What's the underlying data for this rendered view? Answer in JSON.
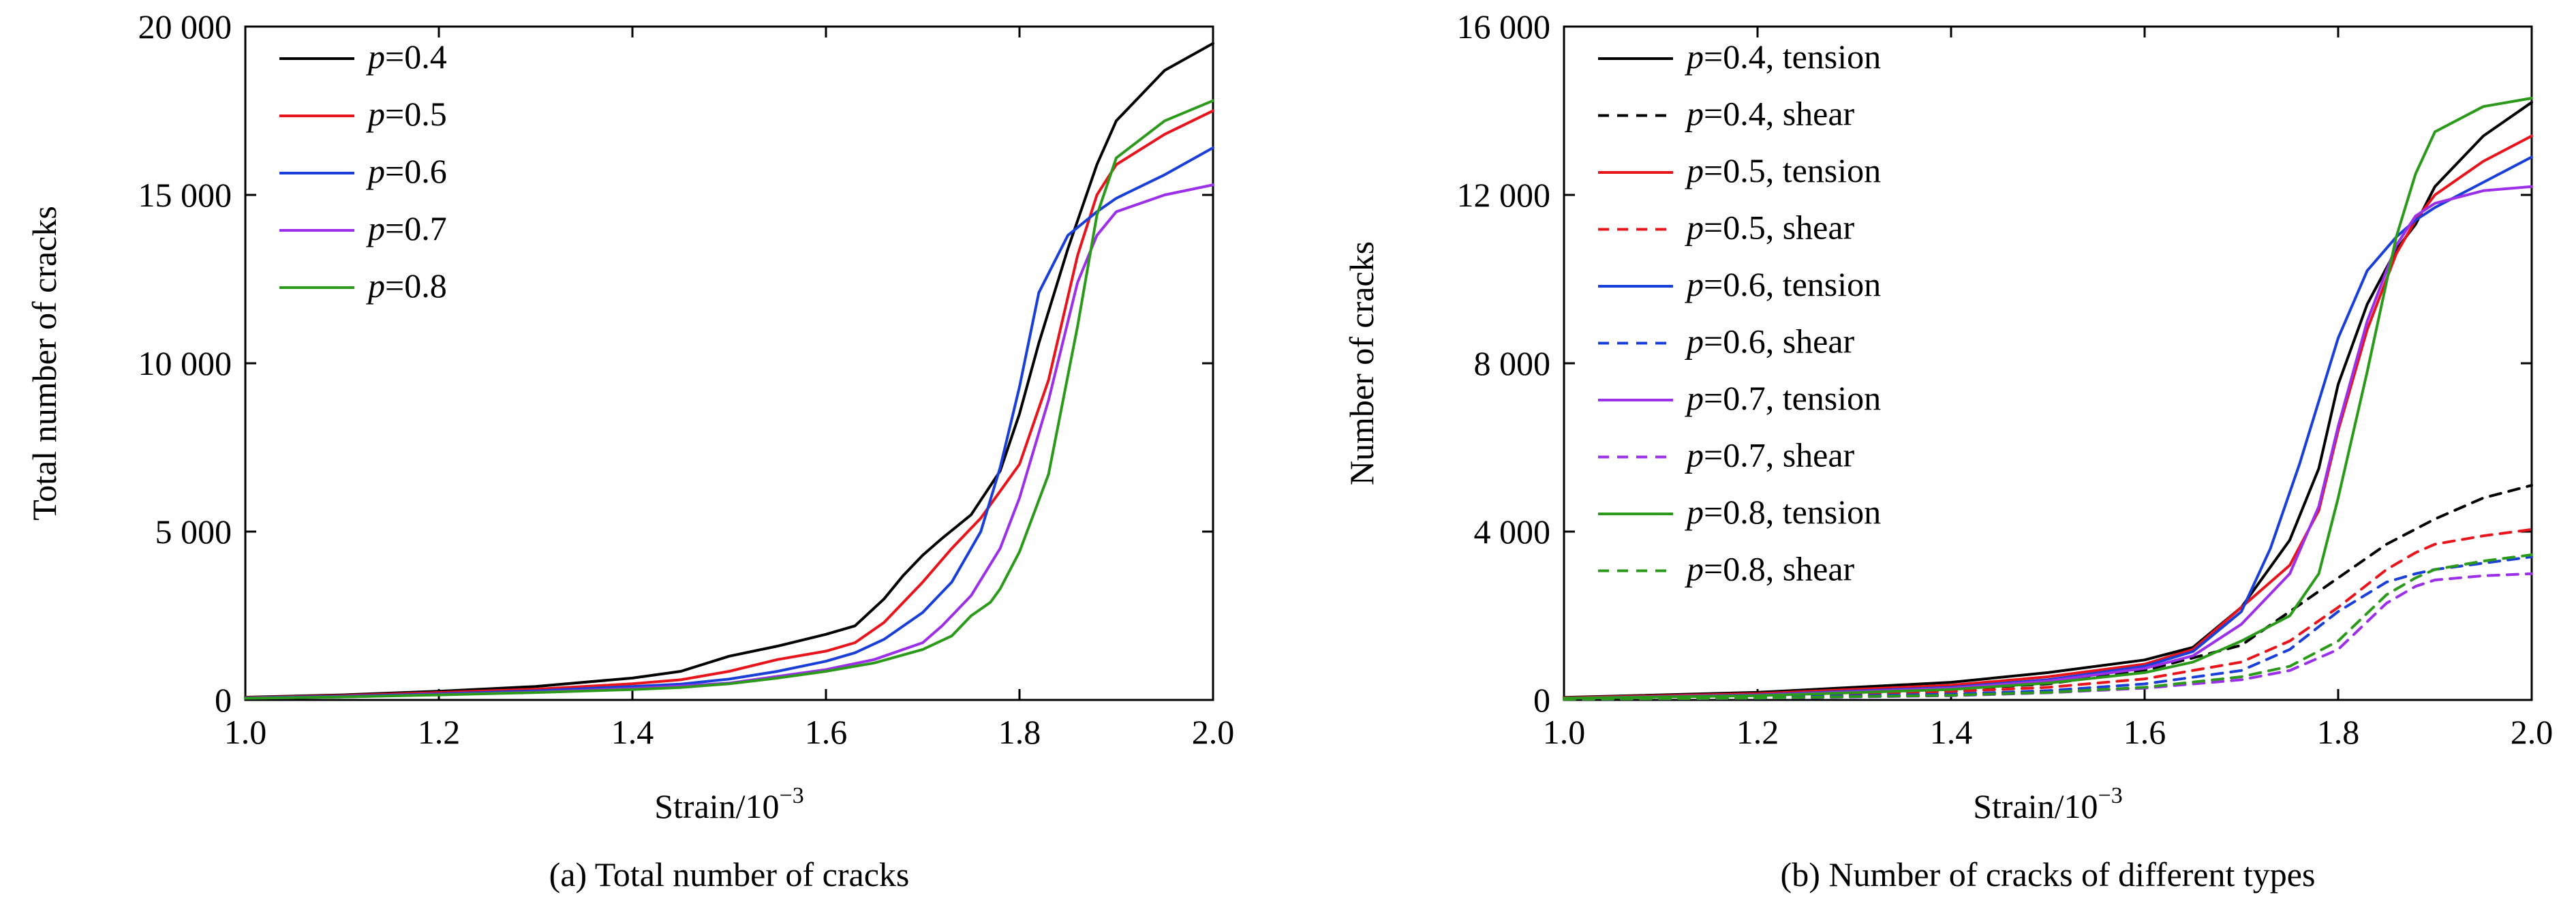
{
  "chart_data": [
    {
      "id": "a",
      "type": "line",
      "title": "",
      "caption": "(a) Total number of cracks",
      "xlabel": "Strain/10",
      "xlabel_sup": "−3",
      "ylabel": "Total number of cracks",
      "xlim": [
        1.0,
        2.0
      ],
      "ylim": [
        0,
        20000
      ],
      "xticks": [
        1.0,
        1.2,
        1.4,
        1.6,
        1.8,
        2.0
      ],
      "xtick_labels": [
        "1.0",
        "1.2",
        "1.4",
        "1.6",
        "1.8",
        "2.0"
      ],
      "yticks": [
        0,
        5000,
        10000,
        15000,
        20000
      ],
      "ytick_labels": [
        "0",
        "5 000",
        "10 000",
        "15 000",
        "20 000"
      ],
      "legend_position": "top-left",
      "series": [
        {
          "name": "p=0.4",
          "label_var": "p",
          "label_rest": "=0.4",
          "color": "#000000",
          "dash": "solid",
          "x": [
            1.0,
            1.1,
            1.2,
            1.3,
            1.4,
            1.45,
            1.5,
            1.55,
            1.6,
            1.63,
            1.66,
            1.68,
            1.7,
            1.72,
            1.75,
            1.78,
            1.8,
            1.82,
            1.85,
            1.88,
            1.9,
            1.95,
            2.0
          ],
          "y": [
            80,
            150,
            260,
            400,
            650,
            850,
            1300,
            1600,
            1950,
            2200,
            3000,
            3700,
            4300,
            4800,
            5500,
            6800,
            8500,
            10600,
            13400,
            15900,
            17200,
            18700,
            19500
          ]
        },
        {
          "name": "p=0.5",
          "label_var": "p",
          "label_rest": "=0.5",
          "color": "#e8141c",
          "dash": "solid",
          "x": [
            1.0,
            1.1,
            1.2,
            1.3,
            1.4,
            1.45,
            1.5,
            1.55,
            1.6,
            1.63,
            1.66,
            1.7,
            1.73,
            1.76,
            1.8,
            1.83,
            1.86,
            1.88,
            1.9,
            1.95,
            2.0
          ],
          "y": [
            70,
            130,
            220,
            320,
            480,
            600,
            850,
            1200,
            1450,
            1700,
            2300,
            3500,
            4500,
            5400,
            7000,
            9500,
            13200,
            15000,
            15900,
            16800,
            17500
          ]
        },
        {
          "name": "p=0.6",
          "label_var": "p",
          "label_rest": "=0.6",
          "color": "#1a3fd8",
          "dash": "solid",
          "x": [
            1.0,
            1.1,
            1.2,
            1.3,
            1.4,
            1.45,
            1.5,
            1.55,
            1.6,
            1.63,
            1.66,
            1.7,
            1.73,
            1.76,
            1.78,
            1.8,
            1.82,
            1.85,
            1.88,
            1.9,
            1.95,
            2.0
          ],
          "y": [
            60,
            110,
            180,
            270,
            400,
            470,
            620,
            850,
            1150,
            1400,
            1800,
            2600,
            3500,
            5000,
            6900,
            9300,
            12100,
            13800,
            14500,
            14900,
            15600,
            16400
          ]
        },
        {
          "name": "p=0.7",
          "label_var": "p",
          "label_rest": "=0.7",
          "color": "#9b30e8",
          "dash": "solid",
          "x": [
            1.0,
            1.1,
            1.2,
            1.3,
            1.4,
            1.45,
            1.5,
            1.55,
            1.6,
            1.65,
            1.7,
            1.72,
            1.75,
            1.78,
            1.8,
            1.83,
            1.86,
            1.88,
            1.9,
            1.95,
            2.0
          ],
          "y": [
            50,
            90,
            160,
            230,
            340,
            410,
            500,
            700,
            900,
            1200,
            1700,
            2200,
            3100,
            4500,
            6000,
            8900,
            12400,
            13800,
            14500,
            15000,
            15300
          ]
        },
        {
          "name": "p=0.8",
          "label_var": "p",
          "label_rest": "=0.8",
          "color": "#2b9a1a",
          "dash": "solid",
          "x": [
            1.0,
            1.1,
            1.2,
            1.3,
            1.4,
            1.45,
            1.5,
            1.55,
            1.6,
            1.65,
            1.7,
            1.73,
            1.75,
            1.77,
            1.78,
            1.8,
            1.83,
            1.86,
            1.88,
            1.9,
            1.95,
            2.0
          ],
          "y": [
            50,
            90,
            150,
            220,
            310,
            370,
            480,
            650,
            850,
            1100,
            1500,
            1900,
            2500,
            2900,
            3300,
            4400,
            6700,
            11100,
            14400,
            16100,
            17200,
            17800
          ]
        }
      ]
    },
    {
      "id": "b",
      "type": "line",
      "title": "",
      "caption": "(b) Number of cracks of different types",
      "xlabel": "Strain/10",
      "xlabel_sup": "−3",
      "ylabel": "Number of cracks",
      "xlim": [
        1.0,
        2.0
      ],
      "ylim": [
        0,
        16000
      ],
      "xticks": [
        1.0,
        1.2,
        1.4,
        1.6,
        1.8,
        2.0
      ],
      "xtick_labels": [
        "1.0",
        "1.2",
        "1.4",
        "1.6",
        "1.8",
        "2.0"
      ],
      "yticks": [
        0,
        4000,
        8000,
        12000,
        16000
      ],
      "ytick_labels": [
        "0",
        "4 000",
        "8 000",
        "12 000",
        "16 000"
      ],
      "legend_position": "top-left",
      "series": [
        {
          "name": "p=0.4, tension",
          "label_var": "p",
          "label_rest": "=0.4, tension",
          "color": "#000000",
          "dash": "solid",
          "x": [
            1.0,
            1.2,
            1.4,
            1.5,
            1.6,
            1.65,
            1.7,
            1.75,
            1.78,
            1.8,
            1.83,
            1.86,
            1.88,
            1.9,
            1.95,
            2.0
          ],
          "y": [
            60,
            180,
            420,
            650,
            950,
            1250,
            2200,
            3800,
            5500,
            7500,
            9400,
            10700,
            11300,
            12200,
            13400,
            14200
          ]
        },
        {
          "name": "p=0.4, shear",
          "label_var": "p",
          "label_rest": "=0.4, shear",
          "color": "#000000",
          "dash": "dashed",
          "x": [
            1.0,
            1.2,
            1.4,
            1.5,
            1.6,
            1.7,
            1.75,
            1.8,
            1.85,
            1.9,
            1.95,
            2.0
          ],
          "y": [
            40,
            120,
            250,
            380,
            700,
            1300,
            2100,
            2900,
            3700,
            4300,
            4800,
            5100
          ]
        },
        {
          "name": "p=0.5, tension",
          "label_var": "p",
          "label_rest": "=0.5, tension",
          "color": "#e8141c",
          "dash": "solid",
          "x": [
            1.0,
            1.2,
            1.4,
            1.5,
            1.6,
            1.65,
            1.7,
            1.75,
            1.78,
            1.8,
            1.83,
            1.86,
            1.88,
            1.9,
            1.95,
            2.0
          ],
          "y": [
            50,
            150,
            350,
            550,
            850,
            1200,
            2200,
            3200,
            4500,
            6400,
            8800,
            10600,
            11400,
            12000,
            12800,
            13400
          ]
        },
        {
          "name": "p=0.5, shear",
          "label_var": "p",
          "label_rest": "=0.5, shear",
          "color": "#e8141c",
          "dash": "dashed",
          "x": [
            1.0,
            1.2,
            1.4,
            1.5,
            1.6,
            1.7,
            1.75,
            1.8,
            1.85,
            1.88,
            1.9,
            1.95,
            2.0
          ],
          "y": [
            30,
            90,
            200,
            300,
            500,
            900,
            1400,
            2200,
            3100,
            3500,
            3700,
            3900,
            4050
          ]
        },
        {
          "name": "p=0.6, tension",
          "label_var": "p",
          "label_rest": "=0.6, tension",
          "color": "#1a3fd8",
          "dash": "solid",
          "x": [
            1.0,
            1.2,
            1.4,
            1.5,
            1.6,
            1.65,
            1.7,
            1.73,
            1.76,
            1.8,
            1.83,
            1.86,
            1.88,
            1.9,
            1.95,
            2.0
          ],
          "y": [
            40,
            120,
            300,
            480,
            800,
            1150,
            2100,
            3600,
            5600,
            8600,
            10200,
            11000,
            11400,
            11700,
            12300,
            12900
          ]
        },
        {
          "name": "p=0.6, shear",
          "label_var": "p",
          "label_rest": "=0.6, shear",
          "color": "#1a3fd8",
          "dash": "dashed",
          "x": [
            1.0,
            1.2,
            1.4,
            1.5,
            1.6,
            1.7,
            1.75,
            1.8,
            1.85,
            1.88,
            1.9,
            1.95,
            2.0
          ],
          "y": [
            20,
            60,
            140,
            220,
            380,
            700,
            1200,
            2100,
            2800,
            3000,
            3100,
            3250,
            3400
          ]
        },
        {
          "name": "p=0.7, tension",
          "label_var": "p",
          "label_rest": "=0.7, tension",
          "color": "#9b30e8",
          "dash": "solid",
          "x": [
            1.0,
            1.2,
            1.4,
            1.5,
            1.6,
            1.65,
            1.7,
            1.75,
            1.78,
            1.8,
            1.83,
            1.86,
            1.88,
            1.9,
            1.95,
            2.0
          ],
          "y": [
            40,
            110,
            280,
            450,
            750,
            1050,
            1800,
            3000,
            4600,
            6500,
            9000,
            10800,
            11500,
            11800,
            12100,
            12200
          ]
        },
        {
          "name": "p=0.7, shear",
          "label_var": "p",
          "label_rest": "=0.7, shear",
          "color": "#9b30e8",
          "dash": "dashed",
          "x": [
            1.0,
            1.2,
            1.4,
            1.5,
            1.6,
            1.7,
            1.75,
            1.8,
            1.85,
            1.88,
            1.9,
            1.95,
            2.0
          ],
          "y": [
            15,
            40,
            100,
            170,
            280,
            480,
            700,
            1200,
            2300,
            2700,
            2850,
            2950,
            3000
          ]
        },
        {
          "name": "p=0.8, tension",
          "label_var": "p",
          "label_rest": "=0.8, tension",
          "color": "#2b9a1a",
          "dash": "solid",
          "x": [
            1.0,
            1.2,
            1.4,
            1.5,
            1.6,
            1.65,
            1.7,
            1.75,
            1.78,
            1.8,
            1.83,
            1.86,
            1.88,
            1.9,
            1.95,
            2.0
          ],
          "y": [
            40,
            100,
            250,
            400,
            650,
            900,
            1400,
            2000,
            3000,
            4800,
            7800,
            11000,
            12500,
            13500,
            14100,
            14300
          ]
        },
        {
          "name": "p=0.8, shear",
          "label_var": "p",
          "label_rest": "=0.8, shear",
          "color": "#2b9a1a",
          "dash": "dashed",
          "x": [
            1.0,
            1.2,
            1.4,
            1.5,
            1.6,
            1.7,
            1.75,
            1.8,
            1.85,
            1.88,
            1.9,
            1.95,
            2.0
          ],
          "y": [
            15,
            45,
            110,
            180,
            300,
            550,
            800,
            1400,
            2500,
            2900,
            3100,
            3300,
            3450
          ]
        }
      ]
    }
  ]
}
